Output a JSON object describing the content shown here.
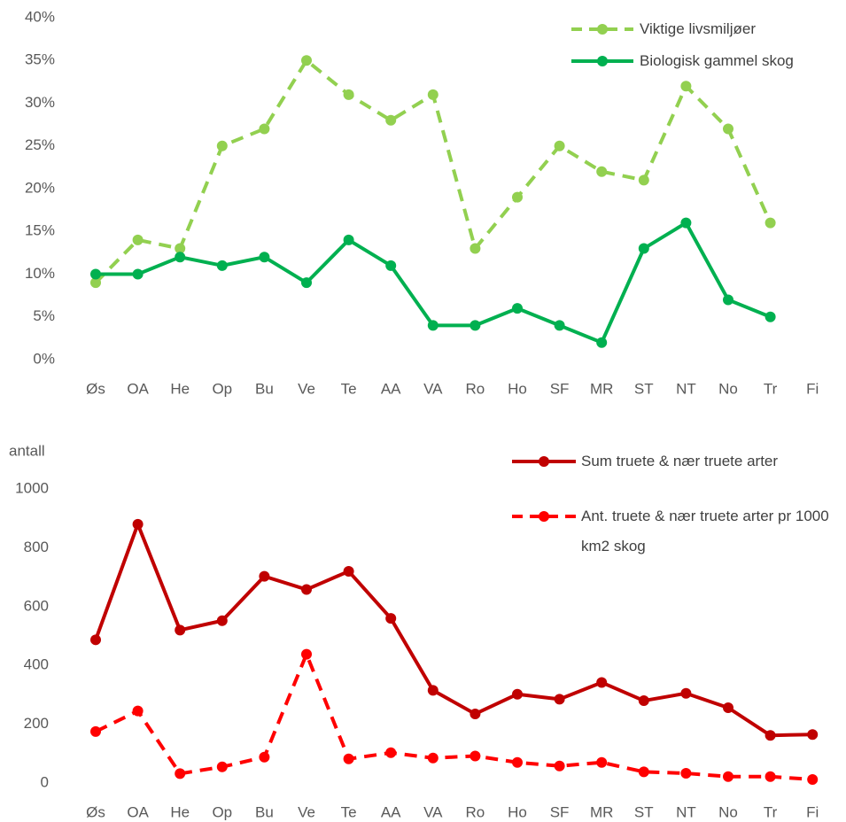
{
  "chart_data": [
    {
      "type": "line",
      "categories": [
        "Øs",
        "OA",
        "He",
        "Op",
        "Bu",
        "Ve",
        "Te",
        "AA",
        "VA",
        "Ro",
        "Ho",
        "SF",
        "MR",
        "ST",
        "NT",
        "No",
        "Tr",
        "Fi"
      ],
      "ylim": [
        0,
        40
      ],
      "yticks": [
        {
          "value": 0,
          "label": "0%"
        },
        {
          "value": 5,
          "label": "5%"
        },
        {
          "value": 10,
          "label": "10%"
        },
        {
          "value": 15,
          "label": "15%"
        },
        {
          "value": 20,
          "label": "20%"
        },
        {
          "value": 25,
          "label": "25%"
        },
        {
          "value": 30,
          "label": "30%"
        },
        {
          "value": 35,
          "label": "35%"
        },
        {
          "value": 40,
          "label": "40%"
        }
      ],
      "series": [
        {
          "name": "Viktige livsmiljøer",
          "color": "#92d050",
          "style": "dashed",
          "values": [
            9,
            14,
            13,
            25,
            27,
            35,
            31,
            28,
            31,
            13,
            19,
            25,
            22,
            21,
            32,
            27,
            16,
            null
          ]
        },
        {
          "name": "Biologisk gammel skog",
          "color": "#00b050",
          "style": "solid",
          "values": [
            10,
            10,
            12,
            11,
            12,
            9,
            14,
            11,
            4,
            4,
            6,
            4,
            2,
            13,
            16,
            7,
            5,
            null
          ]
        }
      ]
    },
    {
      "type": "line",
      "y_label": "antall",
      "categories": [
        "Øs",
        "OA",
        "He",
        "Op",
        "Bu",
        "Ve",
        "Te",
        "AA",
        "VA",
        "Ro",
        "Ho",
        "SF",
        "MR",
        "ST",
        "NT",
        "No",
        "Tr",
        "Fi"
      ],
      "ylim": [
        0,
        1000
      ],
      "yticks": [
        0,
        200,
        400,
        600,
        800,
        1000
      ],
      "series": [
        {
          "name": "Sum truete & nær truete arter",
          "color": "#c00000",
          "style": "solid",
          "values": [
            487,
            880,
            520,
            552,
            703,
            658,
            720,
            560,
            315,
            235,
            302,
            285,
            342,
            280,
            305,
            256,
            162,
            165
          ]
        },
        {
          "name": "Ant. truete & nær truete arter pr 1000 km2 skog",
          "color": "#ff0000",
          "style": "dashed",
          "values": [
            175,
            245,
            32,
            55,
            88,
            438,
            82,
            103,
            85,
            92,
            70,
            58,
            70,
            38,
            33,
            22,
            22,
            12
          ]
        }
      ]
    }
  ]
}
